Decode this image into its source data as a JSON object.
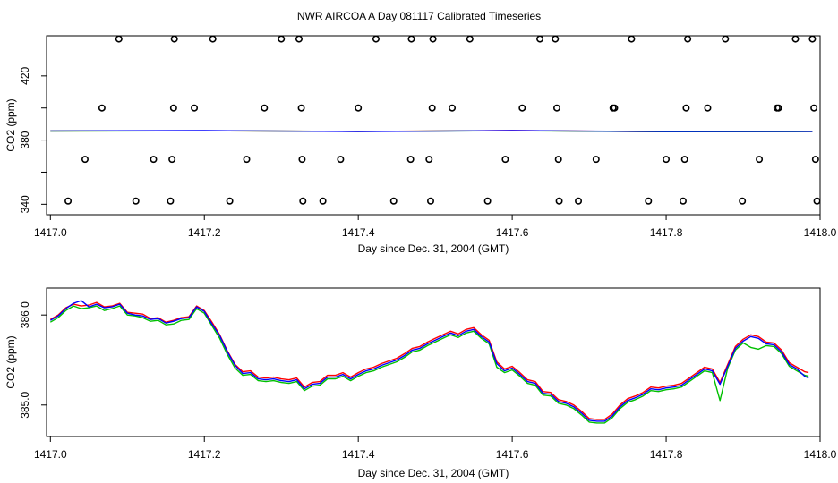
{
  "title": "NWR AIRCOA A  Day 081117  Calibrated Timeseries",
  "chart_data": [
    {
      "type": "scatter",
      "xlabel": "Day since Dec. 31, 2004 (GMT)",
      "ylabel": "CO2 (ppm)",
      "xlim": [
        1416.995,
        1418.0
      ],
      "ylim": [
        333.5,
        445
      ],
      "xticks": [
        1417.0,
        1417.2,
        1417.4,
        1417.6,
        1417.8,
        1418.0
      ],
      "xtick_labels": [
        "1417.0",
        "1417.2",
        "1417.4",
        "1417.6",
        "1417.8",
        "1418.0"
      ],
      "yticks": [
        340,
        360,
        380,
        400,
        420
      ],
      "ytick_labels": [
        "340",
        "",
        "380",
        "",
        "420"
      ],
      "series": [
        {
          "color": "#000000",
          "marker": "circle",
          "x": [
            1417.023,
            1417.045,
            1417.067,
            1417.089,
            1417.111,
            1417.134,
            1417.156,
            1417.158,
            1417.16,
            1417.161,
            1417.187,
            1417.211,
            1417.233,
            1417.255,
            1417.278,
            1417.3,
            1417.323,
            1417.326,
            1417.327,
            1417.328,
            1417.354,
            1417.377,
            1417.4,
            1417.423,
            1417.446,
            1417.468,
            1417.469,
            1417.492,
            1417.494,
            1417.496,
            1417.497,
            1417.522,
            1417.545,
            1417.568,
            1417.591,
            1417.613,
            1417.636,
            1417.656,
            1417.658,
            1417.66,
            1417.661,
            1417.686,
            1417.709,
            1417.731,
            1417.733,
            1417.755,
            1417.777,
            1417.8,
            1417.822,
            1417.824,
            1417.826,
            1417.828,
            1417.854,
            1417.877,
            1417.899,
            1417.921,
            1417.944,
            1417.946,
            1417.968,
            1417.99,
            1417.992,
            1417.994,
            1417.996
          ],
          "y": [
            342,
            368,
            400,
            443,
            342,
            368,
            342,
            368,
            400,
            443,
            400,
            443,
            342,
            368,
            400,
            443,
            443,
            400,
            368,
            342,
            342,
            368,
            400,
            443,
            342,
            368,
            443,
            368,
            342,
            400,
            443,
            400,
            443,
            342,
            368,
            400,
            443,
            443,
            400,
            368,
            342,
            342,
            368,
            400,
            400,
            443,
            342,
            368,
            342,
            368,
            400,
            443,
            400,
            443,
            342,
            368,
            400,
            400,
            443,
            443,
            400,
            368,
            342
          ]
        },
        {
          "color": "#ff0000",
          "x": [
            1417.0,
            1417.2,
            1417.4,
            1417.6,
            1417.8,
            1417.99
          ],
          "y": [
            385.7,
            385.8,
            385.4,
            385.9,
            385.2,
            385.4
          ]
        },
        {
          "color": "#00c000",
          "x": [
            1417.0,
            1417.2,
            1417.4,
            1417.6,
            1417.8,
            1417.99
          ],
          "y": [
            385.6,
            385.8,
            385.4,
            385.8,
            385.2,
            385.3
          ]
        },
        {
          "color": "#0000ff",
          "x": [
            1417.0,
            1417.2,
            1417.4,
            1417.6,
            1417.8,
            1417.99
          ],
          "y": [
            385.7,
            385.9,
            385.3,
            385.9,
            385.3,
            385.4
          ]
        }
      ]
    },
    {
      "type": "line",
      "xlabel": "Day since Dec. 31, 2004 (GMT)",
      "ylabel": "CO2 (ppm)",
      "xlim": [
        1416.995,
        1418.0
      ],
      "ylim": [
        384.65,
        386.3
      ],
      "xticks": [
        1417.0,
        1417.2,
        1417.4,
        1417.6,
        1417.8,
        1418.0
      ],
      "xtick_labels": [
        "1417.0",
        "1417.2",
        "1417.4",
        "1417.6",
        "1417.8",
        "1418.0"
      ],
      "yticks": [
        385.0,
        385.5,
        386.0
      ],
      "ytick_labels": [
        "385.0",
        "",
        "386.0"
      ],
      "x": [
        1417.0,
        1417.01,
        1417.02,
        1417.03,
        1417.04,
        1417.05,
        1417.06,
        1417.07,
        1417.08,
        1417.09,
        1417.1,
        1417.11,
        1417.12,
        1417.13,
        1417.14,
        1417.15,
        1417.16,
        1417.17,
        1417.18,
        1417.19,
        1417.2,
        1417.21,
        1417.22,
        1417.23,
        1417.24,
        1417.25,
        1417.26,
        1417.27,
        1417.28,
        1417.29,
        1417.3,
        1417.31,
        1417.32,
        1417.33,
        1417.34,
        1417.35,
        1417.36,
        1417.37,
        1417.38,
        1417.39,
        1417.4,
        1417.41,
        1417.42,
        1417.43,
        1417.44,
        1417.45,
        1417.46,
        1417.47,
        1417.48,
        1417.49,
        1417.5,
        1417.51,
        1417.52,
        1417.53,
        1417.54,
        1417.55,
        1417.56,
        1417.57,
        1417.58,
        1417.59,
        1417.6,
        1417.61,
        1417.62,
        1417.63,
        1417.64,
        1417.65,
        1417.66,
        1417.67,
        1417.68,
        1417.69,
        1417.7,
        1417.71,
        1417.72,
        1417.73,
        1417.74,
        1417.75,
        1417.76,
        1417.77,
        1417.78,
        1417.79,
        1417.8,
        1417.81,
        1417.82,
        1417.83,
        1417.84,
        1417.85,
        1417.86,
        1417.87,
        1417.88,
        1417.89,
        1417.9,
        1417.91,
        1417.92,
        1417.93,
        1417.94,
        1417.95,
        1417.96,
        1417.97,
        1417.98,
        1417.985
      ],
      "series": [
        {
          "color": "#ff0000",
          "values": [
            385.95,
            386.0,
            386.08,
            386.12,
            386.1,
            386.11,
            386.14,
            386.09,
            386.1,
            386.13,
            386.03,
            386.02,
            386.01,
            385.96,
            385.97,
            385.92,
            385.94,
            385.97,
            385.98,
            386.1,
            386.05,
            385.92,
            385.78,
            385.6,
            385.45,
            385.37,
            385.38,
            385.31,
            385.3,
            385.31,
            385.29,
            385.28,
            385.3,
            385.2,
            385.25,
            385.26,
            385.33,
            385.33,
            385.36,
            385.31,
            385.36,
            385.4,
            385.42,
            385.46,
            385.49,
            385.52,
            385.57,
            385.63,
            385.65,
            385.7,
            385.74,
            385.78,
            385.82,
            385.79,
            385.84,
            385.86,
            385.78,
            385.72,
            385.48,
            385.4,
            385.43,
            385.36,
            385.28,
            385.26,
            385.15,
            385.14,
            385.06,
            385.04,
            385.0,
            384.93,
            384.85,
            384.84,
            384.84,
            384.9,
            385.0,
            385.07,
            385.1,
            385.14,
            385.2,
            385.19,
            385.21,
            385.22,
            385.24,
            385.3,
            385.36,
            385.42,
            385.4,
            385.25,
            385.45,
            385.65,
            385.73,
            385.78,
            385.76,
            385.7,
            385.69,
            385.61,
            385.47,
            385.42,
            385.37,
            385.36
          ]
        },
        {
          "color": "#00c000",
          "values": [
            385.92,
            385.97,
            386.05,
            386.1,
            386.07,
            386.08,
            386.1,
            386.05,
            386.07,
            386.1,
            386.0,
            385.99,
            385.97,
            385.93,
            385.94,
            385.89,
            385.9,
            385.94,
            385.95,
            386.07,
            386.02,
            385.88,
            385.74,
            385.56,
            385.41,
            385.33,
            385.34,
            385.27,
            385.26,
            385.27,
            385.25,
            385.24,
            385.26,
            385.16,
            385.21,
            385.22,
            385.29,
            385.29,
            385.32,
            385.27,
            385.32,
            385.36,
            385.38,
            385.42,
            385.45,
            385.48,
            385.53,
            385.59,
            385.61,
            385.66,
            385.7,
            385.74,
            385.78,
            385.75,
            385.8,
            385.82,
            385.74,
            385.68,
            385.42,
            385.36,
            385.39,
            385.32,
            385.24,
            385.22,
            385.11,
            385.1,
            385.02,
            385.0,
            384.96,
            384.89,
            384.81,
            384.8,
            384.8,
            384.86,
            384.96,
            385.03,
            385.06,
            385.1,
            385.16,
            385.15,
            385.17,
            385.18,
            385.2,
            385.26,
            385.32,
            385.38,
            385.36,
            385.05,
            385.41,
            385.61,
            385.69,
            385.64,
            385.62,
            385.66,
            385.65,
            385.57,
            385.43,
            385.38,
            385.33,
            385.32
          ]
        },
        {
          "color": "#0000ff",
          "values": [
            385.94,
            385.99,
            386.07,
            386.13,
            386.16,
            386.09,
            386.12,
            386.08,
            386.09,
            386.12,
            386.02,
            386.0,
            385.99,
            385.95,
            385.96,
            385.91,
            385.93,
            385.96,
            385.97,
            386.09,
            386.04,
            385.9,
            385.77,
            385.59,
            385.44,
            385.35,
            385.36,
            385.29,
            385.28,
            385.29,
            385.27,
            385.26,
            385.28,
            385.18,
            385.23,
            385.24,
            385.31,
            385.31,
            385.34,
            385.29,
            385.34,
            385.38,
            385.4,
            385.44,
            385.47,
            385.5,
            385.55,
            385.61,
            385.63,
            385.68,
            385.72,
            385.76,
            385.8,
            385.77,
            385.82,
            385.84,
            385.76,
            385.7,
            385.46,
            385.38,
            385.41,
            385.34,
            385.26,
            385.24,
            385.13,
            385.12,
            385.04,
            385.02,
            384.98,
            384.91,
            384.83,
            384.82,
            384.82,
            384.88,
            384.98,
            385.05,
            385.08,
            385.12,
            385.18,
            385.17,
            385.19,
            385.2,
            385.22,
            385.28,
            385.34,
            385.4,
            385.38,
            385.23,
            385.43,
            385.63,
            385.71,
            385.76,
            385.74,
            385.68,
            385.67,
            385.59,
            385.45,
            385.4,
            385.32,
            385.3
          ]
        }
      ]
    }
  ]
}
